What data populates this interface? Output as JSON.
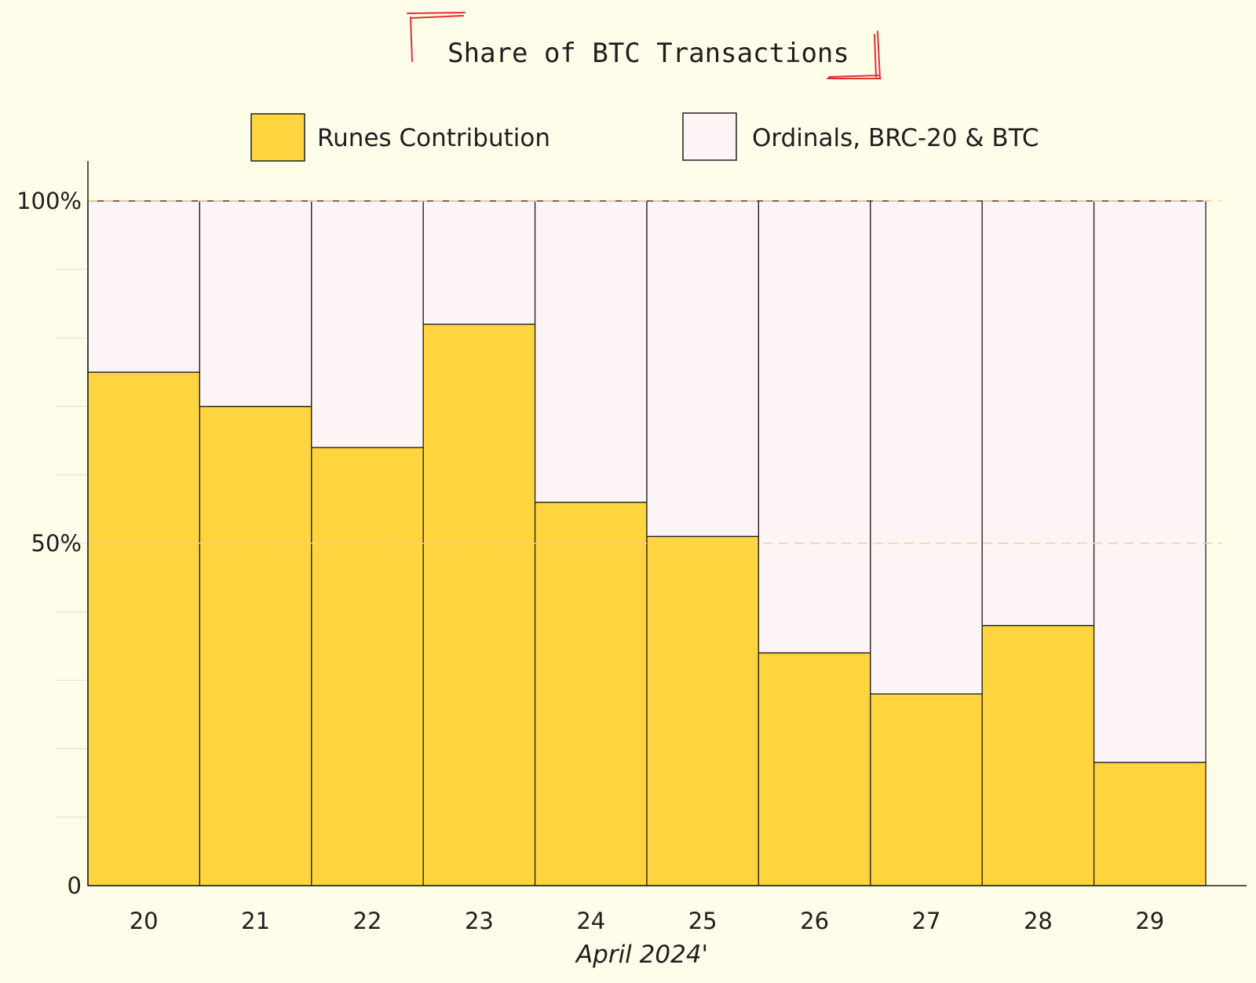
{
  "chart_data": {
    "type": "bar",
    "stacked": true,
    "normalized": true,
    "title": "Share of BTC Transactions",
    "xlabel": "April 2024'",
    "ylabel": "",
    "categories": [
      "20",
      "21",
      "22",
      "23",
      "24",
      "25",
      "26",
      "27",
      "28",
      "29"
    ],
    "series": [
      {
        "name": "Runes Contribution",
        "color": "#fed53f",
        "values": [
          75,
          70,
          64,
          82,
          56,
          51,
          34,
          28,
          38,
          18
        ]
      },
      {
        "name": "Ordinals, BRC-20 & BTC",
        "color": "#fdf5f5",
        "values": [
          25,
          30,
          36,
          18,
          44,
          49,
          66,
          72,
          62,
          82
        ]
      }
    ],
    "ylim": [
      0,
      100
    ],
    "yticks": [
      {
        "value": 0,
        "label": "0"
      },
      {
        "value": 50,
        "label": "50%"
      },
      {
        "value": 100,
        "label": "100%"
      }
    ],
    "grid": true,
    "reference_lines": [
      50,
      100
    ],
    "legend_position": "top",
    "colors": {
      "background": "#fefde9",
      "stroke": "#1e1e1e",
      "title_frame": "#e03131",
      "reference_line": "#ffc9a0",
      "grid": "#dedede"
    }
  }
}
